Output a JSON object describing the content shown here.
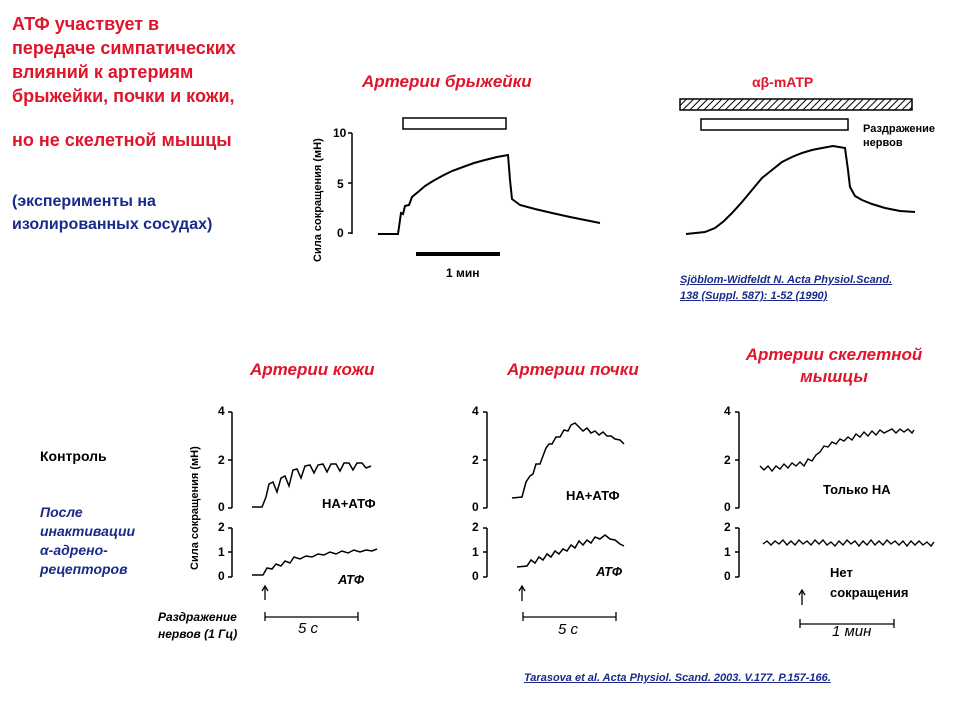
{
  "title": {
    "line1": "АТФ участвует в",
    "line2": "передаче симпатических",
    "line3": "влияний к артериям",
    "line4": "брыжейки, почки и кожи,",
    "line5": "но не скелетной мышцы"
  },
  "subtitle": {
    "line1": "(эксперименты на",
    "line2": "изолированных сосудах)"
  },
  "top_panels": {
    "mesentery_title": "Артерии  брыжейки",
    "ab_matp_label": "αβ-mATP",
    "nerve_stim_line1": "Раздражение",
    "nerve_stim_line2": "нервов",
    "y_axis_label": "Сила сокращения (мН)",
    "y_ticks": [
      "10",
      "5",
      "0"
    ],
    "time_scale_label": "1 мин",
    "citation_line1": "Sjöblom-Widfeldt N. Acta Physiol.Scand.",
    "citation_line2": "138 (Suppl. 587): 1-52 (1990)"
  },
  "bottom_panels": {
    "skin_title": "Артерии кожи",
    "kidney_title": "Артерии почки",
    "muscle_title_line1": "Артерии  скелетной",
    "muscle_title_line2": "мышцы",
    "row_control": "Контроль",
    "row_after_line1": "После",
    "row_after_line2": "инактивации",
    "row_after_line3": "α-адрено-",
    "row_after_line4": "рецепторов",
    "y_axis_label": "Сила сокращения (мН)",
    "upper_ticks": [
      "4",
      "2",
      "0"
    ],
    "lower_ticks": [
      "2",
      "1",
      "0"
    ],
    "skin_upper_label": "НА+АТФ",
    "skin_lower_label": "АТФ",
    "kidney_upper_label": "НА+АТФ",
    "kidney_lower_label": "АТФ",
    "muscle_upper_label": "Только НА",
    "muscle_lower_line1": "Нет",
    "muscle_lower_line2": "сокращения",
    "stim_label_line1": "Раздражение",
    "stim_label_line2": "нервов (1 Гц)",
    "scale_skin": "5 с",
    "scale_kidney": "5 с",
    "scale_muscle": "1 мин",
    "citation": "Tarasova et al. Acta Physiol. Scand.  2003. V.177. P.157-166."
  },
  "colors": {
    "accent_red": "#e0142a",
    "accent_blue": "#1a2a8a",
    "trace": "#000000"
  }
}
